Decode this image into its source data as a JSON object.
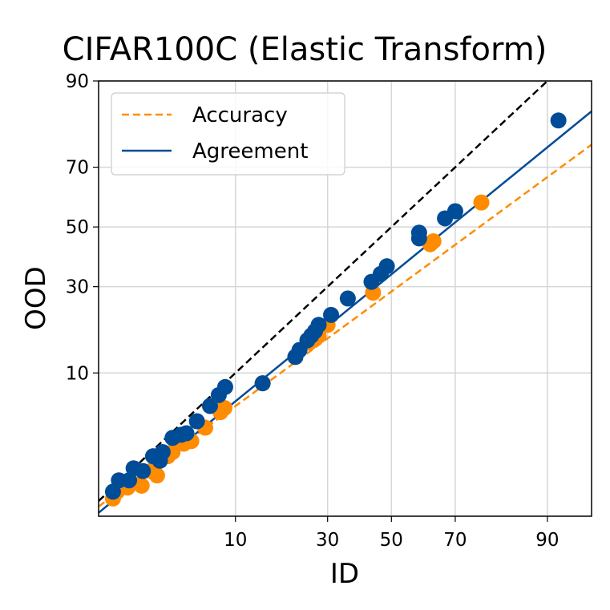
{
  "chart_data": {
    "type": "scatter",
    "title": "CIFAR100C (Elastic Transform)",
    "xlabel": "ID",
    "ylabel": "OOD",
    "axis_scale": "probit",
    "xlim": [
      0.8,
      95
    ],
    "ylim": [
      0.55,
      90
    ],
    "xticks": [
      10,
      30,
      50,
      70,
      90
    ],
    "yticks": [
      10,
      30,
      50,
      70,
      90
    ],
    "grid": true,
    "legend": {
      "placement": "top-left",
      "entries": [
        {
          "label": "Accuracy",
          "style": "dashed",
          "color": "#ff8c00"
        },
        {
          "label": "Agreement",
          "style": "solid",
          "color": "#004c97"
        }
      ]
    },
    "reference_line": {
      "style": "dashed",
      "color": "#000000",
      "description": "y = x"
    },
    "series": [
      {
        "legend_ref": "Accuracy",
        "color": "#ff8c00",
        "fit_line": [
          [
            0.8,
            0.7
          ],
          [
            95,
            76.5
          ]
        ],
        "points": [
          [
            1.1,
            0.85
          ],
          [
            1.2,
            1.0
          ],
          [
            1.5,
            1.1
          ],
          [
            1.6,
            1.25
          ],
          [
            2.0,
            1.15
          ],
          [
            2.4,
            1.6
          ],
          [
            2.7,
            1.45
          ],
          [
            3.3,
            2.2
          ],
          [
            3.6,
            2.4
          ],
          [
            4.4,
            2.85
          ],
          [
            5.0,
            3.0
          ],
          [
            6.3,
            3.9
          ],
          [
            8.0,
            5.2
          ],
          [
            8.5,
            5.6
          ],
          [
            14.5,
            8.5
          ],
          [
            21.5,
            12.7
          ],
          [
            25.0,
            15.5
          ],
          [
            26.5,
            16.3
          ],
          [
            27.5,
            17.0
          ],
          [
            30.0,
            19.5
          ],
          [
            44.0,
            28.2
          ],
          [
            62.5,
            44.0
          ],
          [
            63.5,
            45.0
          ],
          [
            77.0,
            58.5
          ]
        ]
      },
      {
        "legend_ref": "Agreement",
        "color": "#004c97",
        "fit_line": [
          [
            0.8,
            0.6
          ],
          [
            95,
            84.5
          ]
        ],
        "points": [
          [
            1.1,
            1.0
          ],
          [
            1.25,
            1.3
          ],
          [
            1.55,
            1.3
          ],
          [
            1.7,
            1.7
          ],
          [
            2.05,
            1.6
          ],
          [
            2.5,
            2.2
          ],
          [
            2.85,
            2.0
          ],
          [
            3.0,
            2.4
          ],
          [
            3.6,
            3.2
          ],
          [
            4.2,
            3.4
          ],
          [
            4.6,
            3.5
          ],
          [
            5.5,
            4.4
          ],
          [
            6.8,
            5.8
          ],
          [
            7.8,
            7.0
          ],
          [
            8.6,
            8.0
          ],
          [
            14.5,
            8.5
          ],
          [
            21.5,
            12.7
          ],
          [
            22.5,
            14.0
          ],
          [
            24.5,
            16.0
          ],
          [
            25.5,
            17.0
          ],
          [
            26.5,
            18.0
          ],
          [
            27.5,
            19.5
          ],
          [
            31.0,
            22.0
          ],
          [
            36.0,
            26.5
          ],
          [
            43.5,
            31.5
          ],
          [
            46.5,
            34.0
          ],
          [
            48.5,
            36.5
          ],
          [
            59.0,
            46.0
          ],
          [
            59.0,
            48.0
          ],
          [
            67.0,
            53.0
          ],
          [
            70.0,
            55.5
          ],
          [
            91.5,
            82.5
          ]
        ]
      }
    ]
  }
}
